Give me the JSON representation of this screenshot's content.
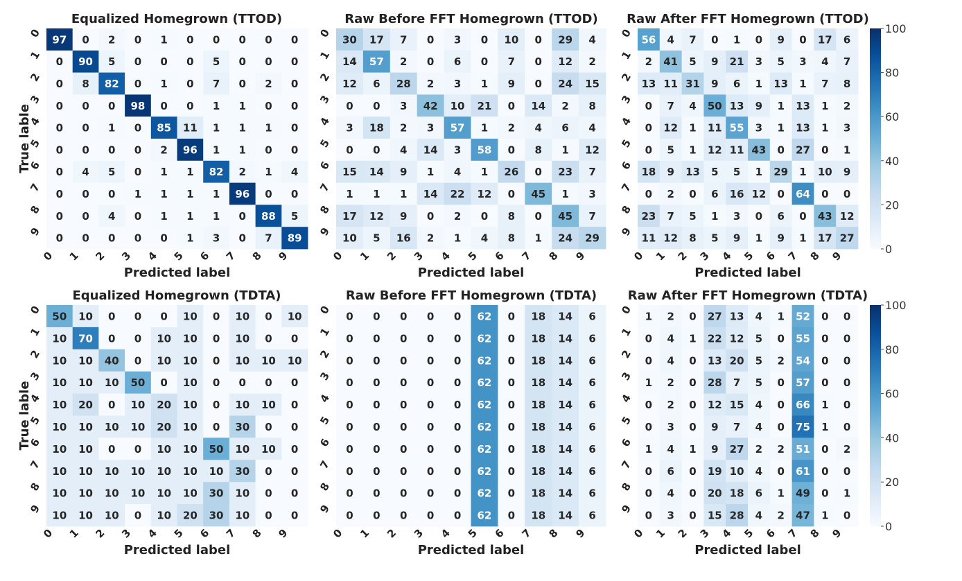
{
  "figure": {
    "xlabel": "Predicted label",
    "ylabel": "True lable",
    "colorbar_ticks": [
      "0",
      "20",
      "40",
      "60",
      "80",
      "100"
    ]
  },
  "chart_data": [
    {
      "type": "heatmap",
      "title": "Equalized Homegrown (TTOD)",
      "xlabel": "Predicted label",
      "ylabel": "True lable",
      "x_ticks": [
        "0",
        "1",
        "2",
        "3",
        "4",
        "5",
        "6",
        "7",
        "8",
        "9"
      ],
      "y_ticks": [
        "0",
        "1",
        "2",
        "3",
        "4",
        "5",
        "6",
        "7",
        "8",
        "9"
      ],
      "range": [
        0,
        100
      ],
      "colormap": "Blues",
      "values": [
        [
          97,
          0,
          2,
          0,
          1,
          0,
          0,
          0,
          0,
          0
        ],
        [
          0,
          90,
          5,
          0,
          0,
          0,
          5,
          0,
          0,
          0
        ],
        [
          0,
          8,
          82,
          0,
          1,
          0,
          7,
          0,
          2,
          0
        ],
        [
          0,
          0,
          0,
          98,
          0,
          0,
          1,
          1,
          0,
          0
        ],
        [
          0,
          0,
          1,
          0,
          85,
          11,
          1,
          1,
          1,
          0
        ],
        [
          0,
          0,
          0,
          0,
          2,
          96,
          1,
          1,
          0,
          0
        ],
        [
          0,
          4,
          5,
          0,
          1,
          1,
          82,
          2,
          1,
          4
        ],
        [
          0,
          0,
          0,
          1,
          1,
          1,
          1,
          96,
          0,
          0
        ],
        [
          0,
          0,
          4,
          0,
          1,
          1,
          1,
          0,
          88,
          5
        ],
        [
          0,
          0,
          0,
          0,
          0,
          1,
          3,
          0,
          7,
          89
        ]
      ]
    },
    {
      "type": "heatmap",
      "title": "Raw Before FFT Homegrown (TTOD)",
      "xlabel": "Predicted label",
      "ylabel": "",
      "x_ticks": [
        "0",
        "1",
        "2",
        "3",
        "4",
        "5",
        "6",
        "7",
        "8",
        "9"
      ],
      "y_ticks": [
        "0",
        "1",
        "2",
        "3",
        "4",
        "5",
        "6",
        "7",
        "8",
        "9"
      ],
      "range": [
        0,
        100
      ],
      "colormap": "Blues",
      "values": [
        [
          30,
          17,
          7,
          0,
          3,
          0,
          10,
          0,
          29,
          4
        ],
        [
          14,
          57,
          2,
          0,
          6,
          0,
          7,
          0,
          12,
          2
        ],
        [
          12,
          6,
          28,
          2,
          3,
          1,
          9,
          0,
          24,
          15
        ],
        [
          0,
          0,
          3,
          42,
          10,
          21,
          0,
          14,
          2,
          8
        ],
        [
          3,
          18,
          2,
          3,
          57,
          1,
          2,
          4,
          6,
          4
        ],
        [
          0,
          0,
          4,
          14,
          3,
          58,
          0,
          8,
          1,
          12
        ],
        [
          15,
          14,
          9,
          1,
          4,
          1,
          26,
          0,
          23,
          7
        ],
        [
          1,
          1,
          1,
          14,
          22,
          12,
          0,
          45,
          1,
          3
        ],
        [
          17,
          12,
          9,
          0,
          2,
          0,
          8,
          0,
          45,
          7
        ],
        [
          10,
          5,
          16,
          2,
          1,
          4,
          8,
          1,
          24,
          29
        ]
      ]
    },
    {
      "type": "heatmap",
      "title": "Raw After FFT Homegrown (TTOD)",
      "xlabel": "Predicted label",
      "ylabel": "",
      "x_ticks": [
        "0",
        "1",
        "2",
        "3",
        "4",
        "5",
        "6",
        "7",
        "8",
        "9"
      ],
      "y_ticks": [
        "0",
        "1",
        "2",
        "3",
        "4",
        "5",
        "6",
        "7",
        "8",
        "9"
      ],
      "range": [
        0,
        100
      ],
      "colormap": "Blues",
      "values": [
        [
          56,
          4,
          7,
          0,
          1,
          0,
          9,
          0,
          17,
          6
        ],
        [
          2,
          41,
          5,
          9,
          21,
          3,
          5,
          3,
          4,
          7
        ],
        [
          13,
          11,
          31,
          9,
          6,
          1,
          13,
          1,
          7,
          8
        ],
        [
          0,
          7,
          4,
          50,
          13,
          9,
          1,
          13,
          1,
          2
        ],
        [
          0,
          12,
          1,
          11,
          55,
          3,
          1,
          13,
          1,
          3
        ],
        [
          0,
          5,
          1,
          12,
          11,
          43,
          0,
          27,
          0,
          1
        ],
        [
          18,
          9,
          13,
          5,
          5,
          1,
          29,
          1,
          10,
          9
        ],
        [
          0,
          2,
          0,
          6,
          16,
          12,
          0,
          64,
          0,
          0
        ],
        [
          23,
          7,
          5,
          1,
          3,
          0,
          6,
          0,
          43,
          12
        ],
        [
          11,
          12,
          8,
          5,
          9,
          1,
          9,
          1,
          17,
          27
        ]
      ]
    },
    {
      "type": "heatmap",
      "title": "Equalized Homegrown (TDTA)",
      "xlabel": "Predicted label",
      "ylabel": "True lable",
      "x_ticks": [
        "0",
        "1",
        "2",
        "3",
        "4",
        "5",
        "6",
        "7",
        "8",
        "9"
      ],
      "y_ticks": [
        "0",
        "1",
        "2",
        "3",
        "4",
        "5",
        "6",
        "7",
        "8",
        "9"
      ],
      "range": [
        0,
        100
      ],
      "colormap": "Blues",
      "values": [
        [
          50,
          10,
          0,
          0,
          0,
          10,
          0,
          10,
          0,
          10
        ],
        [
          10,
          70,
          0,
          0,
          10,
          10,
          0,
          10,
          0,
          0
        ],
        [
          10,
          10,
          40,
          0,
          10,
          10,
          0,
          10,
          10,
          10
        ],
        [
          10,
          10,
          10,
          50,
          0,
          10,
          0,
          0,
          0,
          0
        ],
        [
          10,
          20,
          0,
          10,
          20,
          10,
          0,
          10,
          10,
          0
        ],
        [
          10,
          10,
          10,
          10,
          20,
          10,
          0,
          30,
          0,
          0
        ],
        [
          10,
          10,
          0,
          0,
          10,
          10,
          50,
          10,
          10,
          0
        ],
        [
          10,
          10,
          10,
          10,
          10,
          10,
          10,
          30,
          0,
          0
        ],
        [
          10,
          10,
          10,
          10,
          10,
          10,
          30,
          10,
          0,
          0
        ],
        [
          10,
          10,
          10,
          0,
          10,
          20,
          30,
          10,
          0,
          0
        ]
      ]
    },
    {
      "type": "heatmap",
      "title": "Raw Before FFT Homegrown (TDTA)",
      "xlabel": "Predicted label",
      "ylabel": "",
      "x_ticks": [
        "0",
        "1",
        "2",
        "3",
        "4",
        "5",
        "6",
        "7",
        "8",
        "9"
      ],
      "y_ticks": [
        "0",
        "1",
        "2",
        "3",
        "4",
        "5",
        "6",
        "7",
        "8",
        "9"
      ],
      "range": [
        0,
        100
      ],
      "colormap": "Blues",
      "values": [
        [
          0,
          0,
          0,
          0,
          0,
          62,
          0,
          18,
          14,
          6
        ],
        [
          0,
          0,
          0,
          0,
          0,
          62,
          0,
          18,
          14,
          6
        ],
        [
          0,
          0,
          0,
          0,
          0,
          62,
          0,
          18,
          14,
          6
        ],
        [
          0,
          0,
          0,
          0,
          0,
          62,
          0,
          18,
          14,
          6
        ],
        [
          0,
          0,
          0,
          0,
          0,
          62,
          0,
          18,
          14,
          6
        ],
        [
          0,
          0,
          0,
          0,
          0,
          62,
          0,
          18,
          14,
          6
        ],
        [
          0,
          0,
          0,
          0,
          0,
          62,
          0,
          18,
          14,
          6
        ],
        [
          0,
          0,
          0,
          0,
          0,
          62,
          0,
          18,
          14,
          6
        ],
        [
          0,
          0,
          0,
          0,
          0,
          62,
          0,
          18,
          14,
          6
        ],
        [
          0,
          0,
          0,
          0,
          0,
          62,
          0,
          18,
          14,
          6
        ]
      ]
    },
    {
      "type": "heatmap",
      "title": "Raw After FFT Homegrown (TDTA)",
      "xlabel": "Predicted label",
      "ylabel": "",
      "x_ticks": [
        "0",
        "1",
        "2",
        "3",
        "4",
        "5",
        "6",
        "7",
        "8",
        "9"
      ],
      "y_ticks": [
        "0",
        "1",
        "2",
        "3",
        "4",
        "5",
        "6",
        "7",
        "8",
        "9"
      ],
      "range": [
        0,
        100
      ],
      "colormap": "Blues",
      "values": [
        [
          1,
          2,
          0,
          27,
          13,
          4,
          1,
          52,
          0,
          0
        ],
        [
          0,
          4,
          1,
          22,
          12,
          5,
          0,
          55,
          0,
          0
        ],
        [
          0,
          4,
          0,
          13,
          20,
          5,
          2,
          54,
          0,
          0
        ],
        [
          1,
          2,
          0,
          28,
          7,
          5,
          0,
          57,
          0,
          0
        ],
        [
          0,
          2,
          0,
          12,
          15,
          4,
          0,
          66,
          1,
          0
        ],
        [
          0,
          3,
          0,
          9,
          7,
          4,
          0,
          75,
          1,
          0
        ],
        [
          1,
          4,
          1,
          9,
          27,
          2,
          2,
          51,
          0,
          2
        ],
        [
          0,
          6,
          0,
          19,
          10,
          4,
          0,
          61,
          0,
          0
        ],
        [
          0,
          4,
          0,
          20,
          18,
          6,
          1,
          49,
          0,
          1
        ],
        [
          0,
          3,
          0,
          15,
          28,
          4,
          2,
          47,
          1,
          0
        ]
      ]
    }
  ]
}
